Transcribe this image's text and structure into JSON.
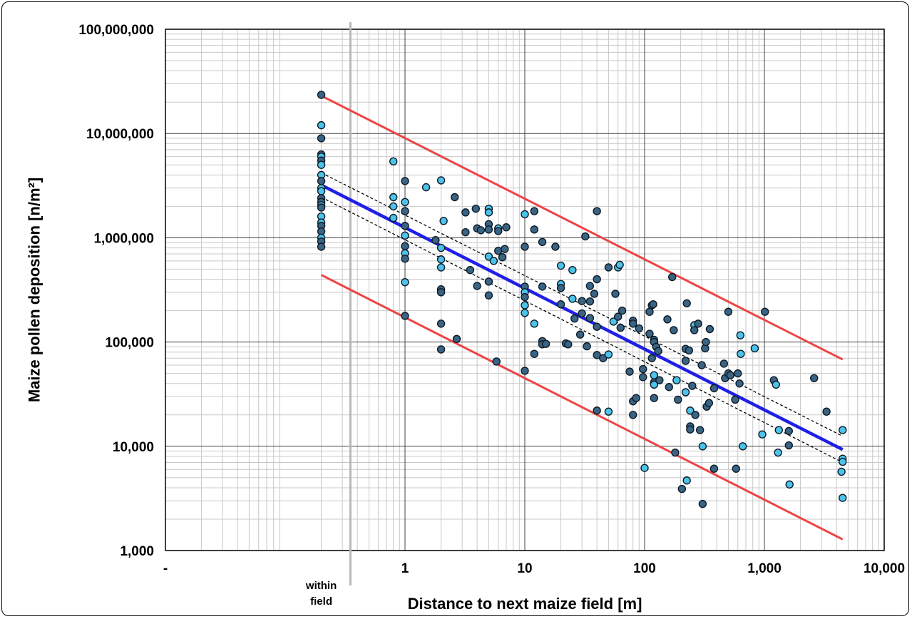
{
  "chart_data": {
    "type": "scatter",
    "title": "",
    "xlabel": "Distance to next maize field [m]",
    "ylabel": "Maize pollen deposition  [n/m²]",
    "x_scale": "log",
    "y_scale": "log",
    "xlim": [
      0.01,
      10000
    ],
    "ylim": [
      1000,
      100000000
    ],
    "grid": true,
    "x_ticks": [
      {
        "value": 0.01,
        "label": "-"
      },
      {
        "value": 1,
        "label": "1"
      },
      {
        "value": 10,
        "label": "10"
      },
      {
        "value": 100,
        "label": "100"
      },
      {
        "value": 1000,
        "label": "1,000"
      },
      {
        "value": 10000,
        "label": "10,000"
      }
    ],
    "y_ticks": [
      {
        "value": 1000,
        "label": "1,000"
      },
      {
        "value": 10000,
        "label": "10,000"
      },
      {
        "value": 100000,
        "label": "100,000"
      },
      {
        "value": 1000000,
        "label": "1,000,000"
      },
      {
        "value": 10000000,
        "label": "10,000,000"
      },
      {
        "value": 100000000,
        "label": "100,000,000"
      }
    ],
    "within_field_label": [
      "within",
      "field"
    ],
    "within_field_x": 0.2,
    "separator_x": 0.35,
    "colors": {
      "regression": "#1f1fe6",
      "prediction_band": "#ee4444",
      "confidence_band": "#000000",
      "point_dark": "#3a6484",
      "point_light": "#4cc3ea",
      "point_edge": "#0d1a26",
      "grid_major": "#444444",
      "grid_minor": "#c8c8c8",
      "separator": "#b8b8b8"
    },
    "lines": [
      {
        "role": "regression",
        "x": [
          0.2,
          4500
        ],
        "y": [
          3200000,
          9300
        ]
      },
      {
        "role": "prediction-upper",
        "x": [
          0.2,
          4500
        ],
        "y": [
          23000000,
          68000
        ]
      },
      {
        "role": "prediction-lower",
        "x": [
          0.2,
          4500
        ],
        "y": [
          440000,
          1280
        ]
      },
      {
        "role": "confidence-upper",
        "x": [
          0.2,
          4500
        ],
        "y": [
          4200000,
          12500
        ]
      },
      {
        "role": "confidence-lower",
        "x": [
          0.2,
          4500
        ],
        "y": [
          2450000,
          7000
        ]
      }
    ],
    "points": [
      [
        0.2,
        23500000,
        "d"
      ],
      [
        0.2,
        12000000,
        "l"
      ],
      [
        0.2,
        9000000,
        "d"
      ],
      [
        0.2,
        6300000,
        "d"
      ],
      [
        0.2,
        6000000,
        "l"
      ],
      [
        0.2,
        5500000,
        "d"
      ],
      [
        0.2,
        5000000,
        "l"
      ],
      [
        0.2,
        4000000,
        "l"
      ],
      [
        0.2,
        3500000,
        "d"
      ],
      [
        0.2,
        3000000,
        "l"
      ],
      [
        0.2,
        2800000,
        "l"
      ],
      [
        0.2,
        2400000,
        "d"
      ],
      [
        0.2,
        2200000,
        "d"
      ],
      [
        0.2,
        2050000,
        "l"
      ],
      [
        0.2,
        1950000,
        "d"
      ],
      [
        0.2,
        1600000,
        "l"
      ],
      [
        0.2,
        1400000,
        "l"
      ],
      [
        0.2,
        1300000,
        "d"
      ],
      [
        0.2,
        1150000,
        "d"
      ],
      [
        0.2,
        1000000,
        "l"
      ],
      [
        0.2,
        920000,
        "d"
      ],
      [
        0.2,
        820000,
        "d"
      ],
      [
        0.8,
        5400000,
        "l"
      ],
      [
        0.8,
        2450000,
        "l"
      ],
      [
        0.8,
        2000000,
        "l"
      ],
      [
        0.8,
        1550000,
        "l"
      ],
      [
        1,
        3500000,
        "d"
      ],
      [
        1,
        2200000,
        "l"
      ],
      [
        1,
        1800000,
        "d"
      ],
      [
        1,
        1300000,
        "d"
      ],
      [
        1,
        1050000,
        "l"
      ],
      [
        1,
        830000,
        "d"
      ],
      [
        1,
        710000,
        "l"
      ],
      [
        1,
        630000,
        "d"
      ],
      [
        1,
        375000,
        "l"
      ],
      [
        1,
        178000,
        "d"
      ],
      [
        1.5,
        3050000,
        "l"
      ],
      [
        1.8,
        950000,
        "d"
      ],
      [
        2,
        3550000,
        "l"
      ],
      [
        2,
        800000,
        "l"
      ],
      [
        2,
        620000,
        "l"
      ],
      [
        2,
        520000,
        "l"
      ],
      [
        2,
        320000,
        "d"
      ],
      [
        2,
        300000,
        "d"
      ],
      [
        2,
        150000,
        "d"
      ],
      [
        2,
        85000,
        "d"
      ],
      [
        2.1,
        1450000,
        "l"
      ],
      [
        2.6,
        2450000,
        "d"
      ],
      [
        2.7,
        107000,
        "d"
      ],
      [
        3.2,
        1750000,
        "d"
      ],
      [
        3.2,
        1130000,
        "d"
      ],
      [
        3.5,
        490000,
        "d"
      ],
      [
        3.9,
        1900000,
        "d"
      ],
      [
        4,
        1230000,
        "d"
      ],
      [
        4,
        345000,
        "d"
      ],
      [
        4.3,
        1180000,
        "d"
      ],
      [
        5,
        1900000,
        "l"
      ],
      [
        5,
        1750000,
        "l"
      ],
      [
        5,
        1350000,
        "d"
      ],
      [
        5,
        1200000,
        "d"
      ],
      [
        5,
        660000,
        "l"
      ],
      [
        5,
        380000,
        "d"
      ],
      [
        5,
        280000,
        "d"
      ],
      [
        5.5,
        600000,
        "l"
      ],
      [
        5.8,
        65000,
        "d"
      ],
      [
        6,
        1230000,
        "l"
      ],
      [
        6,
        1160000,
        "d"
      ],
      [
        6,
        750000,
        "d"
      ],
      [
        6.5,
        650000,
        "d"
      ],
      [
        6.8,
        780000,
        "d"
      ],
      [
        7,
        1260000,
        "d"
      ],
      [
        10,
        1680000,
        "l"
      ],
      [
        10,
        820000,
        "d"
      ],
      [
        10,
        340000,
        "d"
      ],
      [
        10,
        300000,
        "l"
      ],
      [
        10,
        270000,
        "d"
      ],
      [
        10,
        225000,
        "l"
      ],
      [
        10,
        190000,
        "l"
      ],
      [
        10,
        53000,
        "d"
      ],
      [
        12,
        1800000,
        "d"
      ],
      [
        12,
        1200000,
        "d"
      ],
      [
        12,
        150000,
        "l"
      ],
      [
        12,
        77000,
        "d"
      ],
      [
        14,
        910000,
        "d"
      ],
      [
        14,
        340000,
        "d"
      ],
      [
        14,
        102000,
        "d"
      ],
      [
        14,
        95000,
        "d"
      ],
      [
        15,
        96000,
        "d"
      ],
      [
        18,
        820000,
        "d"
      ],
      [
        20,
        540000,
        "l"
      ],
      [
        20,
        360000,
        "l"
      ],
      [
        20,
        330000,
        "d"
      ],
      [
        20,
        230000,
        "d"
      ],
      [
        22,
        97000,
        "d"
      ],
      [
        23,
        95000,
        "d"
      ],
      [
        25,
        490000,
        "l"
      ],
      [
        25,
        260000,
        "l"
      ],
      [
        26,
        168000,
        "d"
      ],
      [
        29,
        118000,
        "d"
      ],
      [
        30,
        247000,
        "d"
      ],
      [
        30,
        188000,
        "d"
      ],
      [
        32,
        1030000,
        "d"
      ],
      [
        33,
        91000,
        "d"
      ],
      [
        35,
        345000,
        "d"
      ],
      [
        35,
        245000,
        "d"
      ],
      [
        35,
        170000,
        "d"
      ],
      [
        38,
        290000,
        "d"
      ],
      [
        40,
        1800000,
        "d"
      ],
      [
        40,
        400000,
        "d"
      ],
      [
        40,
        140000,
        "d"
      ],
      [
        40,
        75000,
        "d"
      ],
      [
        40,
        22000,
        "d"
      ],
      [
        45,
        70000,
        "d"
      ],
      [
        50,
        520000,
        "d"
      ],
      [
        50,
        76000,
        "l"
      ],
      [
        50,
        21500,
        "l"
      ],
      [
        55,
        157000,
        "l"
      ],
      [
        57,
        290000,
        "d"
      ],
      [
        60,
        520000,
        "l"
      ],
      [
        60,
        175000,
        "d"
      ],
      [
        62,
        550000,
        "l"
      ],
      [
        63,
        137000,
        "d"
      ],
      [
        65,
        200000,
        "d"
      ],
      [
        75,
        52000,
        "d"
      ],
      [
        80,
        160000,
        "d"
      ],
      [
        80,
        150000,
        "d"
      ],
      [
        80,
        27000,
        "d"
      ],
      [
        80,
        20000,
        "d"
      ],
      [
        85,
        29000,
        "d"
      ],
      [
        90,
        135000,
        "d"
      ],
      [
        97,
        55000,
        "d"
      ],
      [
        97,
        46000,
        "d"
      ],
      [
        100,
        6200,
        "l"
      ],
      [
        110,
        195000,
        "d"
      ],
      [
        110,
        120000,
        "d"
      ],
      [
        115,
        70000,
        "d"
      ],
      [
        115,
        225000,
        "d"
      ],
      [
        118,
        230000,
        "d"
      ],
      [
        120,
        105000,
        "d"
      ],
      [
        120,
        100000,
        "d"
      ],
      [
        120,
        48000,
        "l"
      ],
      [
        120,
        41000,
        "d"
      ],
      [
        120,
        39000,
        "l"
      ],
      [
        120,
        29000,
        "d"
      ],
      [
        125,
        90000,
        "d"
      ],
      [
        130,
        82000,
        "d"
      ],
      [
        133,
        43000,
        "d"
      ],
      [
        155,
        165000,
        "d"
      ],
      [
        160,
        37000,
        "d"
      ],
      [
        170,
        420000,
        "d"
      ],
      [
        175,
        130000,
        "d"
      ],
      [
        180,
        8700,
        "d"
      ],
      [
        185,
        43000,
        "l"
      ],
      [
        190,
        28000,
        "d"
      ],
      [
        205,
        3900,
        "d"
      ],
      [
        220,
        86000,
        "d"
      ],
      [
        220,
        66000,
        "d"
      ],
      [
        220,
        33000,
        "l"
      ],
      [
        225,
        235000,
        "d"
      ],
      [
        225,
        4700,
        "l"
      ],
      [
        235,
        83000,
        "d"
      ],
      [
        240,
        22000,
        "l"
      ],
      [
        240,
        15500,
        "d"
      ],
      [
        240,
        14500,
        "d"
      ],
      [
        250,
        38000,
        "d"
      ],
      [
        260,
        145000,
        "l"
      ],
      [
        260,
        130000,
        "d"
      ],
      [
        265,
        20000,
        "d"
      ],
      [
        280,
        150000,
        "d"
      ],
      [
        290,
        14300,
        "d"
      ],
      [
        300,
        60000,
        "d"
      ],
      [
        305,
        10000,
        "l"
      ],
      [
        305,
        2800,
        "d"
      ],
      [
        320,
        87000,
        "d"
      ],
      [
        325,
        100000,
        "d"
      ],
      [
        330,
        24000,
        "d"
      ],
      [
        345,
        26000,
        "d"
      ],
      [
        350,
        133000,
        "d"
      ],
      [
        380,
        36000,
        "d"
      ],
      [
        380,
        6100,
        "d"
      ],
      [
        460,
        62000,
        "d"
      ],
      [
        470,
        45000,
        "d"
      ],
      [
        500,
        195000,
        "d"
      ],
      [
        500,
        50000,
        "d"
      ],
      [
        520,
        48000,
        "d"
      ],
      [
        570,
        28000,
        "d"
      ],
      [
        580,
        6100,
        "d"
      ],
      [
        600,
        50000,
        "d"
      ],
      [
        620,
        40000,
        "d"
      ],
      [
        630,
        116000,
        "l"
      ],
      [
        635,
        77000,
        "l"
      ],
      [
        660,
        10000,
        "l"
      ],
      [
        830,
        87000,
        "l"
      ],
      [
        960,
        13000,
        "l"
      ],
      [
        1010,
        195000,
        "d"
      ],
      [
        1200,
        43000,
        "d"
      ],
      [
        1250,
        39000,
        "l"
      ],
      [
        1300,
        8700,
        "l"
      ],
      [
        1320,
        14300,
        "l"
      ],
      [
        1600,
        14000,
        "d"
      ],
      [
        1600,
        10200,
        "d"
      ],
      [
        1620,
        4300,
        "l"
      ],
      [
        2600,
        45000,
        "d"
      ],
      [
        3300,
        21500,
        "d"
      ],
      [
        4400,
        5700,
        "l"
      ],
      [
        4500,
        14300,
        "l"
      ],
      [
        4500,
        7600,
        "l"
      ],
      [
        4500,
        7100,
        "l"
      ],
      [
        4500,
        3200,
        "l"
      ]
    ]
  }
}
